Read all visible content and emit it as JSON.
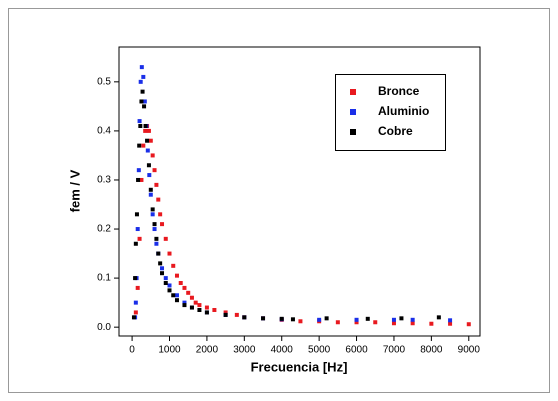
{
  "chart_data": {
    "type": "scatter",
    "xlabel": "Frecuencia [Hz]",
    "ylabel": "fem / V",
    "xlim": [
      -350,
      9300
    ],
    "ylim": [
      -0.018,
      0.571
    ],
    "xticks": [
      0,
      1000,
      2000,
      3000,
      4000,
      5000,
      6000,
      7000,
      8000,
      9000
    ],
    "yticks": [
      {
        "value": 0,
        "label": "0.0"
      },
      0.1,
      0.2,
      0.3,
      0.4,
      0.5
    ],
    "legend": "upper right",
    "series": [
      {
        "name": "Bronce",
        "color": "#e8191f",
        "x": [
          100,
          150,
          200,
          250,
          300,
          350,
          400,
          450,
          500,
          550,
          600,
          650,
          700,
          750,
          800,
          900,
          1000,
          1100,
          1200,
          1300,
          1400,
          1500,
          1600,
          1700,
          1800,
          2000,
          2200,
          2500,
          2800,
          3000,
          3500,
          4000,
          4500,
          5000,
          5500,
          6000,
          6500,
          7000,
          7500,
          8000,
          8500,
          9000
        ],
        "values": [
          0.03,
          0.08,
          0.18,
          0.3,
          0.37,
          0.4,
          0.41,
          0.4,
          0.38,
          0.35,
          0.32,
          0.29,
          0.26,
          0.23,
          0.21,
          0.18,
          0.15,
          0.125,
          0.105,
          0.09,
          0.08,
          0.07,
          0.06,
          0.05,
          0.045,
          0.04,
          0.035,
          0.03,
          0.025,
          0.02,
          0.018,
          0.015,
          0.012,
          0.012,
          0.01,
          0.01,
          0.01,
          0.008,
          0.008,
          0.007,
          0.007,
          0.006
        ]
      },
      {
        "name": "Aluminio",
        "color": "#1a2fe8",
        "x": [
          80,
          100,
          120,
          150,
          180,
          200,
          230,
          260,
          300,
          340,
          380,
          420,
          460,
          500,
          550,
          600,
          650,
          700,
          800,
          900,
          1000,
          1200,
          1400,
          1600,
          2000,
          2500,
          3000,
          3500,
          4000,
          5000,
          6000,
          7000,
          7500,
          8500
        ],
        "values": [
          0.02,
          0.05,
          0.1,
          0.2,
          0.32,
          0.42,
          0.5,
          0.53,
          0.51,
          0.46,
          0.41,
          0.36,
          0.31,
          0.27,
          0.23,
          0.2,
          0.17,
          0.15,
          0.12,
          0.1,
          0.085,
          0.065,
          0.05,
          0.04,
          0.03,
          0.025,
          0.02,
          0.018,
          0.016,
          0.015,
          0.015,
          0.015,
          0.015,
          0.014
        ]
      },
      {
        "name": "Cobre",
        "color": "#000000",
        "x": [
          50,
          80,
          100,
          130,
          160,
          190,
          220,
          250,
          280,
          320,
          360,
          400,
          450,
          500,
          550,
          600,
          650,
          700,
          750,
          800,
          900,
          1000,
          1100,
          1200,
          1400,
          1600,
          1800,
          2000,
          2500,
          3000,
          3500,
          4000,
          4300,
          5200,
          6300,
          7200,
          8200
        ],
        "values": [
          0.02,
          0.1,
          0.17,
          0.23,
          0.3,
          0.37,
          0.41,
          0.46,
          0.48,
          0.45,
          0.41,
          0.38,
          0.33,
          0.28,
          0.24,
          0.21,
          0.18,
          0.15,
          0.13,
          0.11,
          0.09,
          0.075,
          0.065,
          0.055,
          0.045,
          0.04,
          0.035,
          0.03,
          0.025,
          0.02,
          0.018,
          0.017,
          0.016,
          0.018,
          0.017,
          0.018,
          0.02
        ]
      }
    ]
  }
}
